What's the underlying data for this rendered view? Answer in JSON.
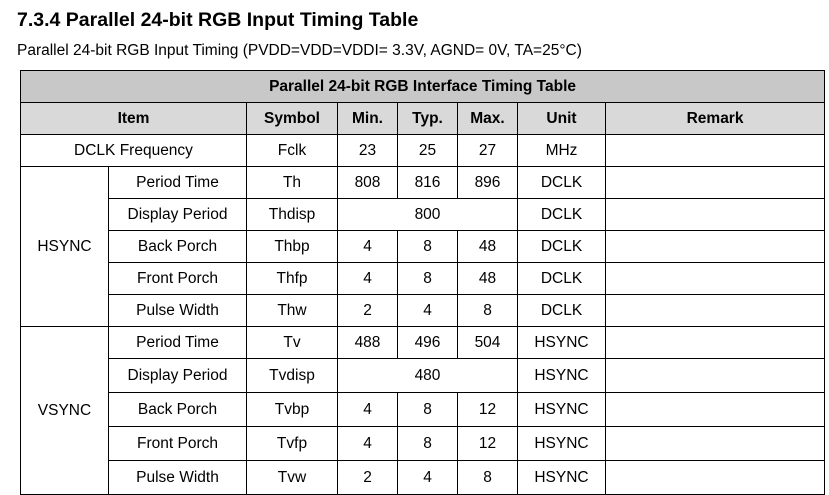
{
  "heading": "7.3.4 Parallel 24-bit RGB Input Timing Table",
  "subtitle": "Parallel 24-bit RGB Input Timing (PVDD=VDD=VDDI= 3.3V, AGND= 0V, TA=25°C)",
  "table": {
    "title": "Parallel 24-bit RGB Interface Timing Table",
    "headers": {
      "item": "Item",
      "symbol": "Symbol",
      "min": "Min.",
      "typ": "Typ.",
      "max": "Max.",
      "unit": "Unit",
      "remark": "Remark"
    },
    "dclk": {
      "item": "DCLK Frequency",
      "symbol": "Fclk",
      "min": "23",
      "typ": "25",
      "max": "27",
      "unit": "MHz",
      "remark": ""
    },
    "hsync": {
      "group": "HSYNC",
      "rows": [
        {
          "item": "Period Time",
          "symbol": "Th",
          "min": "808",
          "typ": "816",
          "max": "896",
          "unit": "DCLK",
          "remark": ""
        },
        {
          "item": "Display Period",
          "symbol": "Thdisp",
          "value": "800",
          "unit": "DCLK",
          "remark": ""
        },
        {
          "item": "Back Porch",
          "symbol": "Thbp",
          "min": "4",
          "typ": "8",
          "max": "48",
          "unit": "DCLK",
          "remark": ""
        },
        {
          "item": "Front Porch",
          "symbol": "Thfp",
          "min": "4",
          "typ": "8",
          "max": "48",
          "unit": "DCLK",
          "remark": ""
        },
        {
          "item": "Pulse Width",
          "symbol": "Thw",
          "min": "2",
          "typ": "4",
          "max": "8",
          "unit": "DCLK",
          "remark": ""
        }
      ]
    },
    "vsync": {
      "group": "VSYNC",
      "rows": [
        {
          "item": "Period Time",
          "symbol": "Tv",
          "min": "488",
          "typ": "496",
          "max": "504",
          "unit": "HSYNC",
          "remark": ""
        },
        {
          "item": "Display Period",
          "symbol": "Tvdisp",
          "value": "480",
          "unit": "HSYNC",
          "remark": ""
        },
        {
          "item": "Back Porch",
          "symbol": "Tvbp",
          "min": "4",
          "typ": "8",
          "max": "12",
          "unit": "HSYNC",
          "remark": ""
        },
        {
          "item": "Front Porch",
          "symbol": "Tvfp",
          "min": "4",
          "typ": "8",
          "max": "12",
          "unit": "HSYNC",
          "remark": ""
        },
        {
          "item": "Pulse Width",
          "symbol": "Tvw",
          "min": "2",
          "typ": "4",
          "max": "8",
          "unit": "HSYNC",
          "remark": ""
        }
      ]
    }
  }
}
